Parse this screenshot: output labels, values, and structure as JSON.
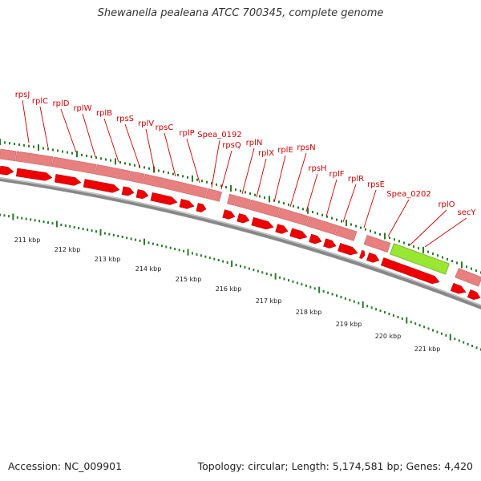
{
  "title": "Shewanella pealeana ATCC 700345, complete genome",
  "footer": {
    "accession": "Accession: NC_009901",
    "stats": "Topology: circular; Length: 5,174,581 bp; Genes: 4,420"
  },
  "colors": {
    "gene_outer": "#e88080",
    "gene_inner": "#ee0000",
    "highlight": "#99e633",
    "backbone": "#888888",
    "tick": "#2a7a2a",
    "label": "#cc0000"
  },
  "gene_labels": [
    {
      "name": "rpsJ"
    },
    {
      "name": "rplC"
    },
    {
      "name": "rplD"
    },
    {
      "name": "rplW"
    },
    {
      "name": "rplB"
    },
    {
      "name": "rpsS"
    },
    {
      "name": "rplV"
    },
    {
      "name": "rpsC"
    },
    {
      "name": "rplP"
    },
    {
      "name": "Spea_0192"
    },
    {
      "name": "rpsQ"
    },
    {
      "name": "rplN"
    },
    {
      "name": "rplX"
    },
    {
      "name": "rplE"
    },
    {
      "name": "rpsN"
    },
    {
      "name": "rpsH"
    },
    {
      "name": "rplF"
    },
    {
      "name": "rplR"
    },
    {
      "name": "rpsE"
    },
    {
      "name": "Spea_0202"
    },
    {
      "name": "rplO"
    },
    {
      "name": "secY"
    }
  ],
  "scale_labels": [
    "211 kbp",
    "212 kbp",
    "213 kbp",
    "214 kbp",
    "215 kbp",
    "216 kbp",
    "217 kbp",
    "218 kbp",
    "219 kbp",
    "220 kbp",
    "221 kbp"
  ]
}
